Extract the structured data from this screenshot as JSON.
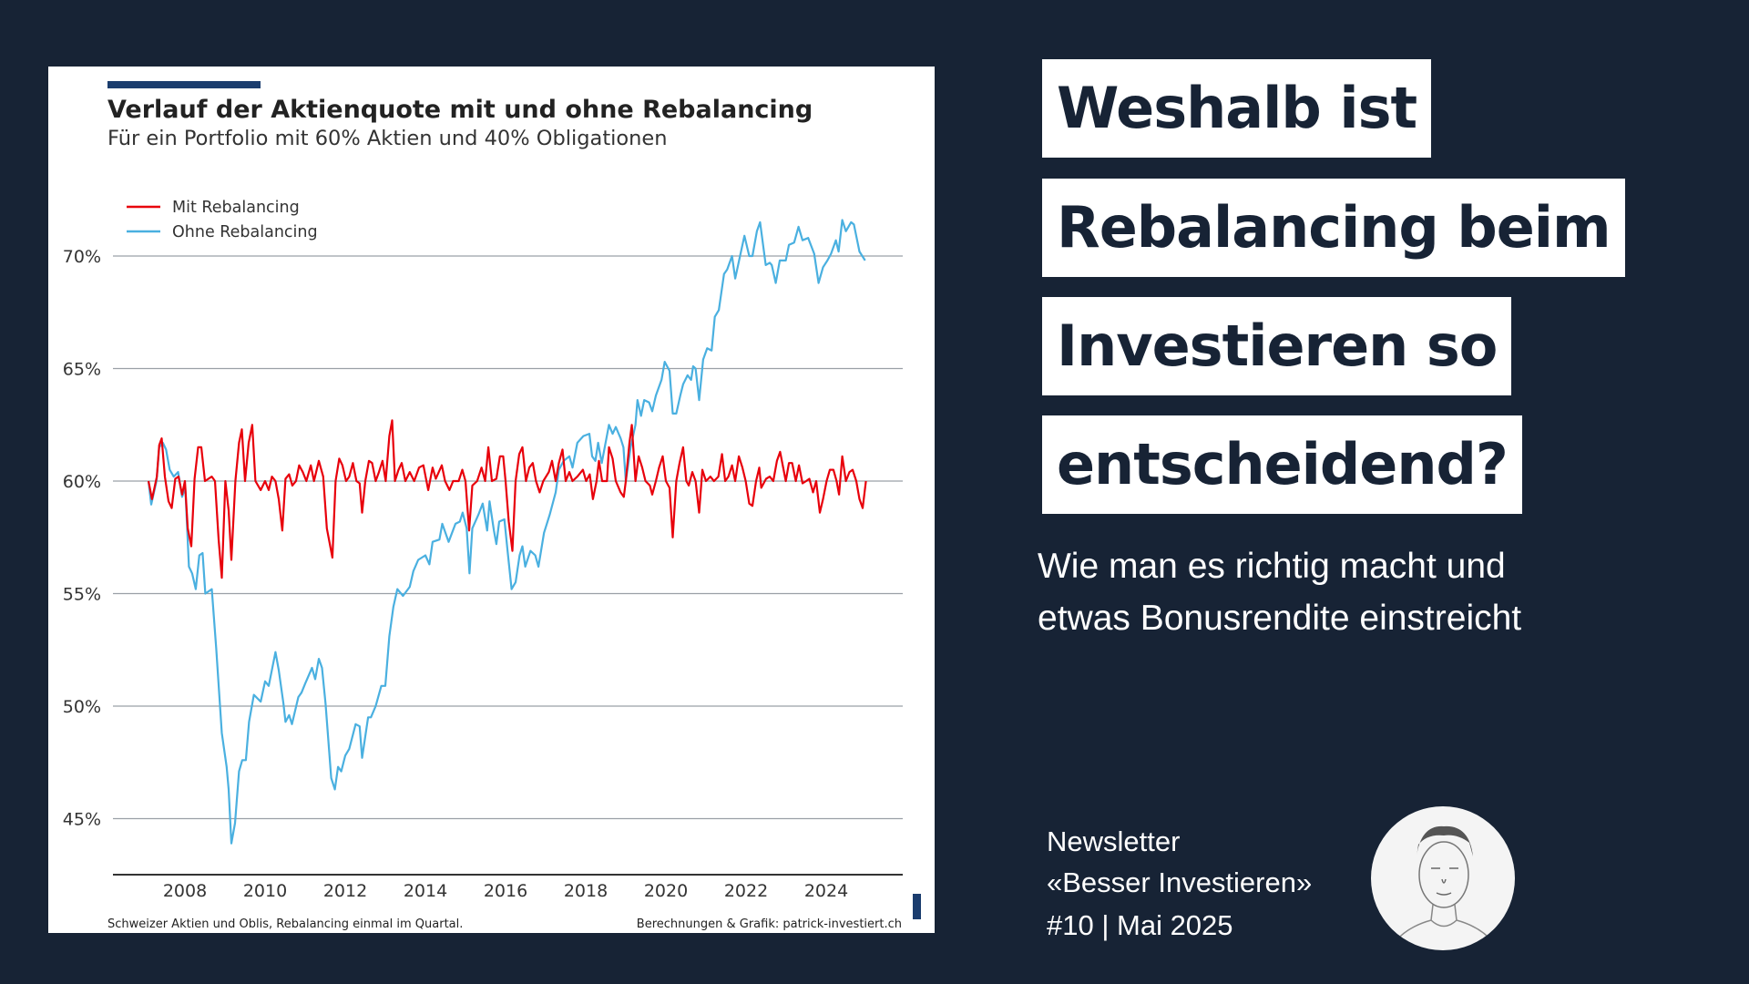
{
  "headline": {
    "lines": [
      "Weshalb ist",
      "Rebalancing beim",
      "Investieren so",
      "entscheidend?"
    ],
    "subtitle_lines": [
      "Wie man es richtig macht und",
      "etwas Bonusrendite einstreicht"
    ]
  },
  "newsletter": {
    "lines": [
      "Newsletter",
      "«Besser Investieren»",
      "#10 | Mai 2025"
    ],
    "avatar_icon": "author-portrait-sketch"
  },
  "colors": {
    "background": "#172335",
    "accent_bar": "#1b3d6e",
    "mit": "#e8000b",
    "ohne": "#4ab0e0"
  },
  "chart_data": {
    "type": "line",
    "title": "Verlauf der Aktienquote mit und ohne Rebalancing",
    "subtitle": "Für ein Portfolio mit 60% Aktien und 40% Obligationen",
    "footer_left": "Schweizer Aktien und Oblis, Rebalancing einmal im Quartal.",
    "footer_right": "Berechnungen & Grafik: patrick-investiert.ch",
    "legend_position": "top-left",
    "grid": "horizontal",
    "xlim": [
      2006.5,
      2025.5
    ],
    "ylim": [
      42.5,
      72.5
    ],
    "x_ticks": [
      2008,
      2010,
      2012,
      2014,
      2016,
      2018,
      2020,
      2022,
      2024
    ],
    "x_tick_labels": [
      "2008",
      "2010",
      "2012",
      "2014",
      "2016",
      "2018",
      "2020",
      "2022",
      "2024"
    ],
    "y_ticks": [
      45,
      50,
      55,
      60,
      65,
      70
    ],
    "y_tick_labels": [
      "45%",
      "50%",
      "55%",
      "60%",
      "65%",
      "70%"
    ],
    "series": [
      {
        "name": "Mit Rebalancing",
        "x": [
          2007.09,
          2007.18,
          2007.3,
          2007.36,
          2007.42,
          2007.5,
          2007.59,
          2007.67,
          2007.76,
          2007.84,
          2007.93,
          2008.0,
          2008.07,
          2008.16,
          2008.24,
          2008.33,
          2008.41,
          2008.5,
          2008.67,
          2008.75,
          2008.84,
          2008.92,
          2009.01,
          2009.09,
          2009.16,
          2009.26,
          2009.35,
          2009.42,
          2009.5,
          2009.59,
          2009.68,
          2009.76,
          2009.89,
          2010.0,
          2010.09,
          2010.17,
          2010.26,
          2010.34,
          2010.43,
          2010.51,
          2010.6,
          2010.68,
          2010.77,
          2010.85,
          2010.94,
          2011.03,
          2011.14,
          2011.22,
          2011.34,
          2011.45,
          2011.54,
          2011.68,
          2011.76,
          2011.85,
          2011.93,
          2012.02,
          2012.1,
          2012.19,
          2012.28,
          2012.36,
          2012.42,
          2012.5,
          2012.59,
          2012.67,
          2012.76,
          2012.84,
          2012.93,
          2013.01,
          2013.1,
          2013.17,
          2013.24,
          2013.33,
          2013.41,
          2013.5,
          2013.61,
          2013.72,
          2013.84,
          2013.95,
          2014.07,
          2014.18,
          2014.26,
          2014.41,
          2014.49,
          2014.6,
          2014.69,
          2014.83,
          2014.92,
          2015.0,
          2015.09,
          2015.17,
          2015.29,
          2015.4,
          2015.49,
          2015.57,
          2015.66,
          2015.77,
          2015.86,
          2015.94,
          2016.0,
          2016.08,
          2016.17,
          2016.25,
          2016.34,
          2016.42,
          2016.51,
          2016.59,
          2016.68,
          2016.76,
          2016.85,
          2016.94,
          2017.08,
          2017.16,
          2017.25,
          2017.33,
          2017.42,
          2017.5,
          2017.59,
          2017.67,
          2017.79,
          2017.93,
          2018.01,
          2018.1,
          2018.18,
          2018.27,
          2018.33,
          2018.41,
          2018.53,
          2018.58,
          2018.67,
          2018.75,
          2018.87,
          2018.95,
          2019.0,
          2019.09,
          2019.15,
          2019.24,
          2019.32,
          2019.41,
          2019.49,
          2019.6,
          2019.66,
          2019.75,
          2019.83,
          2019.92,
          2020.0,
          2020.09,
          2020.17,
          2020.26,
          2020.34,
          2020.43,
          2020.51,
          2020.57,
          2020.66,
          2020.74,
          2020.83,
          2020.91,
          2021.0,
          2021.11,
          2021.2,
          2021.31,
          2021.4,
          2021.48,
          2021.56,
          2021.65,
          2021.73,
          2021.82,
          2021.91,
          2021.99,
          2022.08,
          2022.16,
          2022.25,
          2022.33,
          2022.38,
          2022.5,
          2022.59,
          2022.68,
          2022.77,
          2022.85,
          2022.99,
          2023.07,
          2023.15,
          2023.24,
          2023.32,
          2023.41,
          2023.5,
          2023.58,
          2023.67,
          2023.75,
          2023.84,
          2023.92,
          2024.01,
          2024.09,
          2024.18,
          2024.26,
          2024.32,
          2024.4,
          2024.49,
          2024.58,
          2024.66,
          2024.75,
          2024.83,
          2024.91,
          2024.99
        ],
        "y": [
          60,
          59.2,
          60.2,
          61.6,
          61.9,
          60.2,
          59.1,
          58.8,
          60.1,
          60.2,
          59.4,
          60,
          57.9,
          57.1,
          60.1,
          61.5,
          61.5,
          60,
          60.2,
          60,
          57.4,
          55.7,
          60,
          58.7,
          56.5,
          60,
          61.7,
          62.3,
          60,
          61.7,
          62.5,
          60,
          59.6,
          60,
          59.6,
          60.2,
          60,
          59.2,
          57.8,
          60.1,
          60.3,
          59.8,
          60,
          60.7,
          60.4,
          60,
          60.7,
          60,
          60.9,
          60.2,
          57.9,
          56.6,
          60,
          61,
          60.7,
          60,
          60.2,
          60.8,
          60,
          59.9,
          58.6,
          60,
          60.9,
          60.8,
          60,
          60.4,
          60.9,
          60,
          62,
          62.7,
          60,
          60.5,
          60.8,
          60,
          60.4,
          60,
          60.6,
          60.7,
          59.6,
          60.6,
          60.1,
          60.7,
          60,
          59.6,
          60,
          60,
          60.5,
          60,
          57.8,
          59.8,
          60,
          60.6,
          60,
          61.5,
          60,
          60.1,
          61.1,
          61.1,
          60,
          58.2,
          56.9,
          60,
          61.2,
          61.5,
          60,
          60.6,
          60.8,
          60,
          59.5,
          60,
          60.4,
          60.9,
          60,
          60.8,
          61.4,
          60,
          60.4,
          60,
          60.2,
          60.5,
          60,
          60.3,
          59.2,
          60,
          60.9,
          60,
          60,
          61.5,
          61,
          60,
          59.5,
          59.3,
          60,
          61.7,
          62.5,
          60,
          61.1,
          60.6,
          60,
          59.8,
          59.4,
          60,
          60.6,
          61.1,
          60,
          59.7,
          57.5,
          60,
          60.8,
          61.5,
          60,
          59.8,
          60.4,
          60,
          58.6,
          60.5,
          60,
          60.2,
          60,
          60.2,
          61.2,
          60,
          60.2,
          60.7,
          60,
          61.1,
          60.6,
          60,
          59,
          58.9,
          60,
          60.6,
          59.7,
          60.1,
          60.2,
          60,
          60.9,
          61.3,
          60,
          60.8,
          60.8,
          60,
          60.7,
          59.9,
          60,
          60.1,
          59.5,
          60,
          58.6,
          59.2,
          60,
          60.5,
          60.5,
          60,
          59.4,
          61.1,
          60,
          60.4,
          60.5,
          60,
          59.2,
          58.8,
          60
        ]
      },
      {
        "name": "Ohne Rebalancing",
        "x": [
          2007.09,
          2007.16,
          2007.29,
          2007.36,
          2007.45,
          2007.53,
          2007.62,
          2007.72,
          2007.83,
          2007.93,
          2008.01,
          2008.1,
          2008.18,
          2008.27,
          2008.36,
          2008.44,
          2008.51,
          2008.67,
          2008.78,
          2008.92,
          2009.04,
          2009.09,
          2009.16,
          2009.25,
          2009.35,
          2009.43,
          2009.52,
          2009.6,
          2009.72,
          2009.89,
          2010.0,
          2010.09,
          2010.26,
          2010.34,
          2010.46,
          2010.51,
          2010.6,
          2010.67,
          2010.83,
          2010.91,
          2011.0,
          2011.17,
          2011.25,
          2011.34,
          2011.42,
          2011.51,
          2011.65,
          2011.74,
          2011.82,
          2011.9,
          2012.0,
          2012.1,
          2012.26,
          2012.36,
          2012.42,
          2012.57,
          2012.64,
          2012.76,
          2012.9,
          2013.0,
          2013.1,
          2013.2,
          2013.3,
          2013.44,
          2013.61,
          2013.7,
          2013.82,
          2014.0,
          2014.1,
          2014.18,
          2014.35,
          2014.42,
          2014.58,
          2014.75,
          2014.86,
          2014.93,
          2015.03,
          2015.1,
          2015.17,
          2015.32,
          2015.43,
          2015.54,
          2015.6,
          2015.71,
          2015.77,
          2015.84,
          2015.97,
          2016.05,
          2016.15,
          2016.25,
          2016.35,
          2016.42,
          2016.49,
          2016.62,
          2016.74,
          2016.82,
          2016.96,
          2017.1,
          2017.25,
          2017.33,
          2017.45,
          2017.59,
          2017.67,
          2017.79,
          2017.94,
          2018.09,
          2018.16,
          2018.24,
          2018.31,
          2018.4,
          2018.58,
          2018.67,
          2018.75,
          2018.87,
          2018.94,
          2019.0,
          2019.12,
          2019.24,
          2019.29,
          2019.38,
          2019.46,
          2019.58,
          2019.66,
          2019.75,
          2019.89,
          2019.97,
          2020.09,
          2020.17,
          2020.26,
          2020.36,
          2020.43,
          2020.54,
          2020.63,
          2020.68,
          2020.74,
          2020.83,
          2020.93,
          2021.03,
          2021.14,
          2021.22,
          2021.32,
          2021.45,
          2021.53,
          2021.65,
          2021.73,
          2021.85,
          2021.96,
          2022.08,
          2022.16,
          2022.27,
          2022.35,
          2022.49,
          2022.59,
          2022.64,
          2022.74,
          2022.84,
          2022.99,
          2023.07,
          2023.2,
          2023.31,
          2023.41,
          2023.55,
          2023.7,
          2023.81,
          2023.92,
          2024.03,
          2024.12,
          2024.24,
          2024.31,
          2024.4,
          2024.49,
          2024.62,
          2024.69,
          2024.83,
          2024.97
        ],
        "y": [
          60,
          58.96,
          60,
          61.5,
          61.7,
          61.4,
          60.5,
          60.2,
          60.4,
          59.3,
          59.7,
          56.2,
          55.9,
          55.2,
          56.7,
          56.8,
          55,
          55.2,
          52.6,
          48.8,
          47.3,
          46.3,
          43.9,
          44.8,
          47.1,
          47.6,
          47.6,
          49.3,
          50.5,
          50.2,
          51.1,
          50.9,
          52.4,
          51.6,
          50.1,
          49.3,
          49.6,
          49.2,
          50.4,
          50.6,
          51,
          51.7,
          51.2,
          52.1,
          51.7,
          50.1,
          46.8,
          46.3,
          47.3,
          47.1,
          47.8,
          48.1,
          49.2,
          49.1,
          47.7,
          49.5,
          49.5,
          50,
          50.9,
          50.9,
          53.1,
          54.4,
          55.2,
          54.9,
          55.3,
          56,
          56.5,
          56.7,
          56.3,
          57.3,
          57.4,
          58.1,
          57.3,
          58.1,
          58.2,
          58.6,
          57.9,
          55.9,
          57.9,
          58.5,
          59,
          57.8,
          59.1,
          57.8,
          57.2,
          58.2,
          58.3,
          56.9,
          55.2,
          55.5,
          56.7,
          57.1,
          56.2,
          56.9,
          56.7,
          56.2,
          57.7,
          58.5,
          59.5,
          60.5,
          60.9,
          61.1,
          60.6,
          61.7,
          62,
          62.1,
          61.1,
          60.9,
          61.7,
          60.8,
          62.5,
          62.1,
          62.4,
          61.9,
          61.5,
          60,
          61.5,
          62.5,
          63.6,
          62.9,
          63.6,
          63.5,
          63.1,
          63.8,
          64.5,
          65.3,
          64.9,
          63,
          63,
          63.8,
          64.3,
          64.7,
          64.5,
          65.1,
          65,
          63.6,
          65.4,
          65.9,
          65.8,
          67.3,
          67.6,
          69.2,
          69.4,
          70,
          69,
          70,
          70.9,
          70,
          70,
          71.1,
          71.5,
          69.6,
          69.7,
          69.6,
          68.8,
          69.8,
          69.8,
          70.5,
          70.6,
          71.3,
          70.7,
          70.8,
          70.1,
          68.8,
          69.5,
          69.8,
          70.1,
          70.7,
          70.2,
          71.6,
          71.1,
          71.5,
          71.4,
          70.2,
          69.8
        ]
      }
    ]
  }
}
